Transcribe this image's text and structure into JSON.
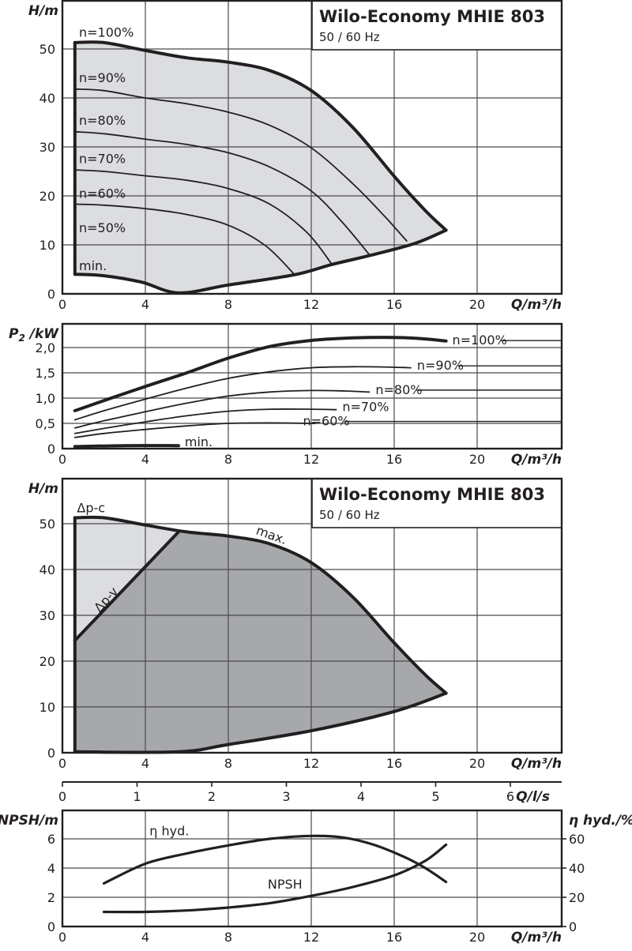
{
  "colors": {
    "ink": "#231f20",
    "light_fill": "#dcdde0",
    "dark_fill": "#a7a8ac",
    "grid": "#4a4a4a",
    "background": "#ffffff"
  },
  "header": {
    "title": "Wilo-Economy MHIE 803",
    "subtitle": "50 / 60 Hz"
  },
  "chart_data": [
    {
      "id": "head_speed_curves",
      "type": "line",
      "title": "Wilo-Economy MHIE 803",
      "subtitle": "50 / 60 Hz",
      "xlabel": "Q/m³/h",
      "ylabel": "H/m",
      "xlim": [
        0,
        24
      ],
      "ylim": [
        0,
        60
      ],
      "xticks": [
        0,
        4,
        8,
        12,
        16,
        20
      ],
      "yticks": [
        0,
        10,
        20,
        30,
        40,
        50
      ],
      "grid": true,
      "envelope": {
        "fill": "#dcdde0",
        "points": [
          [
            0.6,
            4
          ],
          [
            0.6,
            51.3
          ],
          [
            2,
            51.3
          ],
          [
            4,
            49.7
          ],
          [
            6,
            48.2
          ],
          [
            8,
            47.3
          ],
          [
            10,
            45.6
          ],
          [
            12,
            41.5
          ],
          [
            14,
            34
          ],
          [
            16,
            24
          ],
          [
            17.5,
            17
          ],
          [
            18.5,
            13
          ],
          [
            17,
            10.3
          ],
          [
            14.8,
            7.8
          ],
          [
            13,
            6
          ],
          [
            11.2,
            3.9
          ],
          [
            8,
            1.8
          ],
          [
            5.6,
            0.2
          ],
          [
            3.8,
            2.4
          ],
          [
            2,
            3.7
          ],
          [
            0.6,
            4
          ]
        ]
      },
      "series": [
        {
          "name": "n=100%",
          "label": "n=100%",
          "style": "thick",
          "points": [
            [
              0.6,
              51.3
            ],
            [
              2,
              51.3
            ],
            [
              4,
              49.7
            ],
            [
              6,
              48.2
            ],
            [
              8,
              47.3
            ],
            [
              10,
              45.6
            ],
            [
              12,
              41.5
            ],
            [
              14,
              34
            ],
            [
              16,
              24
            ],
            [
              17.5,
              17
            ],
            [
              18.5,
              13
            ]
          ],
          "label_at": [
            0.8,
            52.5
          ]
        },
        {
          "name": "n=90%",
          "label": "n=90%",
          "style": "thin",
          "points": [
            [
              0.6,
              41.8
            ],
            [
              2,
              41.5
            ],
            [
              4,
              40
            ],
            [
              6,
              38.8
            ],
            [
              8,
              37.1
            ],
            [
              10,
              34.4
            ],
            [
              12,
              29.8
            ],
            [
              14,
              22.5
            ],
            [
              15.5,
              16
            ],
            [
              16.6,
              10.8
            ]
          ],
          "label_at": [
            0.8,
            43.2
          ]
        },
        {
          "name": "n=80%",
          "label": "n=80%",
          "style": "thin",
          "points": [
            [
              0.6,
              33.1
            ],
            [
              2,
              32.7
            ],
            [
              4,
              31.6
            ],
            [
              6,
              30.5
            ],
            [
              8,
              28.8
            ],
            [
              10,
              25.9
            ],
            [
              12,
              21
            ],
            [
              13.5,
              14.6
            ],
            [
              14.8,
              8
            ]
          ],
          "label_at": [
            0.8,
            34.5
          ]
        },
        {
          "name": "n=70%",
          "label": "n=70%",
          "style": "thin",
          "points": [
            [
              0.6,
              25.3
            ],
            [
              2,
              25
            ],
            [
              4,
              24.1
            ],
            [
              6,
              23.2
            ],
            [
              8,
              21.5
            ],
            [
              10,
              18.3
            ],
            [
              11.8,
              12.5
            ],
            [
              13,
              6
            ]
          ],
          "label_at": [
            0.8,
            26.7
          ]
        },
        {
          "name": "n=60%",
          "label": "n=60%",
          "style": "thin",
          "points": [
            [
              0.6,
              18.3
            ],
            [
              2,
              18.1
            ],
            [
              4,
              17.4
            ],
            [
              6,
              16.2
            ],
            [
              8,
              14
            ],
            [
              9.8,
              9.8
            ],
            [
              11.2,
              3.9
            ]
          ],
          "label_at": [
            0.8,
            19.6
          ]
        },
        {
          "name": "n=50%",
          "label": "n=50%",
          "style": "none",
          "points": [],
          "label_at": [
            0.8,
            12.6
          ]
        },
        {
          "name": "min.",
          "label": "min.",
          "style": "thick",
          "points": [
            [
              0.6,
              4
            ],
            [
              2,
              3.7
            ],
            [
              3.8,
              2.4
            ],
            [
              5.6,
              0.2
            ],
            [
              8,
              1.8
            ],
            [
              11.2,
              3.9
            ],
            [
              13,
              6
            ],
            [
              14.8,
              7.8
            ],
            [
              17,
              10.3
            ],
            [
              18.5,
              13
            ]
          ],
          "label_at": [
            0.8,
            4.8
          ]
        }
      ],
      "left_boundary": {
        "style": "thick",
        "points": [
          [
            0.6,
            4
          ],
          [
            0.6,
            51.3
          ]
        ]
      }
    },
    {
      "id": "power_curves",
      "type": "line",
      "xlabel": "Q/m³/h",
      "ylabel": "P2 /kW",
      "xlim": [
        0,
        24
      ],
      "ylim": [
        0,
        2.5
      ],
      "xticks": [
        0,
        4,
        8,
        12,
        16,
        20
      ],
      "yticks": [
        0,
        0.5,
        1.0,
        1.5,
        2.0
      ],
      "ytick_labels": [
        "0",
        "0,5",
        "1,0",
        "1,5",
        "2,0"
      ],
      "grid": true,
      "series": [
        {
          "name": "n=100%",
          "label": "n=100%",
          "style": "thick",
          "points": [
            [
              0.6,
              0.75
            ],
            [
              2,
              0.95
            ],
            [
              4,
              1.23
            ],
            [
              6,
              1.5
            ],
            [
              8,
              1.79
            ],
            [
              10,
              2.02
            ],
            [
              12,
              2.14
            ],
            [
              14,
              2.19
            ],
            [
              16,
              2.2
            ],
            [
              17.5,
              2.17
            ],
            [
              18.5,
              2.13
            ]
          ],
          "label_at": [
            18.8,
            2.06
          ],
          "leader_to": 24.1
        },
        {
          "name": "n=90%",
          "label": "n=90%",
          "style": "thin",
          "points": [
            [
              0.6,
              0.57
            ],
            [
              2,
              0.75
            ],
            [
              4,
              0.98
            ],
            [
              6,
              1.2
            ],
            [
              8,
              1.39
            ],
            [
              10,
              1.52
            ],
            [
              12,
              1.6
            ],
            [
              14,
              1.62
            ],
            [
              16,
              1.61
            ],
            [
              16.8,
              1.6
            ]
          ],
          "label_at": [
            17.1,
            1.56
          ],
          "leader_to": 24.1
        },
        {
          "name": "n=80%",
          "label": "n=80%",
          "style": "thin",
          "points": [
            [
              0.6,
              0.41
            ],
            [
              2,
              0.55
            ],
            [
              4,
              0.73
            ],
            [
              6,
              0.9
            ],
            [
              8,
              1.04
            ],
            [
              10,
              1.12
            ],
            [
              12,
              1.15
            ],
            [
              13.6,
              1.14
            ],
            [
              14.8,
              1.12
            ]
          ],
          "label_at": [
            15.1,
            1.08
          ],
          "leader_to": 24.1
        },
        {
          "name": "n=70%",
          "label": "n=70%",
          "style": "thin",
          "points": [
            [
              0.6,
              0.3
            ],
            [
              2,
              0.4
            ],
            [
              4,
              0.53
            ],
            [
              6,
              0.65
            ],
            [
              8,
              0.74
            ],
            [
              10,
              0.78
            ],
            [
              12,
              0.78
            ],
            [
              13.2,
              0.77
            ]
          ],
          "label_at": [
            13.5,
            0.74
          ],
          "leader_to": null
        },
        {
          "name": "n=60%",
          "label": "n=60%",
          "style": "thin",
          "points": [
            [
              0.6,
              0.22
            ],
            [
              2,
              0.3
            ],
            [
              4,
              0.38
            ],
            [
              6,
              0.45
            ],
            [
              8,
              0.5
            ],
            [
              10,
              0.51
            ],
            [
              12,
              0.5
            ],
            [
              12.1,
              0.5
            ]
          ],
          "label_at": [
            11.6,
            0.46
          ],
          "leader_to": 24.1
        },
        {
          "name": "min.",
          "label": "min.",
          "style": "thick",
          "points": [
            [
              0.6,
              0.04
            ],
            [
              3,
              0.06
            ],
            [
              5.6,
              0.06
            ]
          ],
          "label_at": [
            5.9,
            0.05
          ],
          "leader_to": null
        }
      ]
    },
    {
      "id": "control_modes",
      "type": "area",
      "title": "Wilo-Economy MHIE 803",
      "subtitle": "50 / 60 Hz",
      "xlabel": "Q/m³/h",
      "ylabel": "H/m",
      "xlim": [
        0,
        24
      ],
      "ylim": [
        0,
        60
      ],
      "xticks": [
        0,
        4,
        8,
        12,
        16,
        20
      ],
      "yticks": [
        0,
        10,
        20,
        30,
        40,
        50
      ],
      "grid": true,
      "secondary_x_axis": {
        "label": "Q/l/s",
        "ticks": [
          0,
          1,
          2,
          3,
          4,
          5,
          6
        ],
        "factor_m3h_per_unit": 3.6
      },
      "regions": [
        {
          "name": "Δp-c",
          "fill": "#dcdde0",
          "points": [
            [
              0.6,
              24.5
            ],
            [
              0.6,
              51.3
            ],
            [
              2,
              51.3
            ],
            [
              4,
              49.7
            ],
            [
              5.6,
              48.2
            ],
            [
              0.6,
              24.5
            ]
          ]
        },
        {
          "name": "Δp-v",
          "fill": "#a7a8ac",
          "points": [
            [
              0.6,
              0
            ],
            [
              0.6,
              24.5
            ],
            [
              5.6,
              48.2
            ],
            [
              8,
              47.3
            ],
            [
              10,
              45.6
            ],
            [
              12,
              41.5
            ],
            [
              14,
              34
            ],
            [
              16,
              24
            ],
            [
              17.5,
              17
            ],
            [
              18.5,
              13
            ],
            [
              16,
              9
            ],
            [
              12,
              4.8
            ],
            [
              8,
              1.8
            ],
            [
              5.6,
              0.2
            ],
            [
              0.6,
              0
            ]
          ]
        }
      ],
      "series": [
        {
          "name": "max.",
          "label": "max.",
          "style": "thick",
          "points": [
            [
              0.6,
              51.3
            ],
            [
              2,
              51.3
            ],
            [
              4,
              49.7
            ],
            [
              6,
              48.2
            ],
            [
              8,
              47.3
            ],
            [
              10,
              45.6
            ],
            [
              12,
              41.5
            ],
            [
              14,
              34
            ],
            [
              16,
              24
            ],
            [
              17.5,
              17
            ],
            [
              18.5,
              13
            ]
          ],
          "label_at": [
            9.3,
            47.8
          ],
          "label_rotate": 20
        },
        {
          "name": "Δp-v line",
          "label": "Δp-v",
          "style": "thick",
          "points": [
            [
              0.6,
              24.5
            ],
            [
              5.6,
              48.2
            ]
          ],
          "label_at": [
            1.8,
            30.5
          ],
          "label_rotate": -48
        },
        {
          "name": "min.",
          "label": "",
          "style": "thick",
          "points": [
            [
              0.6,
              0.2
            ],
            [
              5.6,
              0.2
            ],
            [
              8,
              1.8
            ],
            [
              12,
              4.8
            ],
            [
              16,
              9
            ],
            [
              18.5,
              13
            ]
          ]
        },
        {
          "name": "Δp-c",
          "label": "Δp-c",
          "style": "none",
          "points": [],
          "label_at": [
            0.7,
            52.5
          ]
        }
      ],
      "left_boundary": {
        "style": "thick",
        "points": [
          [
            0.6,
            0.2
          ],
          [
            0.6,
            51.3
          ]
        ]
      }
    },
    {
      "id": "npsh_efficiency",
      "type": "line",
      "xlabel": "Q/m³/h",
      "ylabel": "NPSH/m",
      "ylabel_right": "η hyd./%",
      "xlim": [
        0,
        24
      ],
      "ylim": [
        0,
        8
      ],
      "ylim_right": [
        0,
        80
      ],
      "xticks": [
        0,
        4,
        8,
        12,
        16,
        20
      ],
      "yticks": [
        0,
        2,
        4,
        6
      ],
      "yticks_right": [
        0,
        20,
        40,
        60
      ],
      "grid": true,
      "series": [
        {
          "name": "η hyd.",
          "label": "η hyd.",
          "axis": "right",
          "style": "medium",
          "points": [
            [
              2,
              29.5
            ],
            [
              4,
              43
            ],
            [
              6,
              50
            ],
            [
              8,
              55.5
            ],
            [
              10,
              60
            ],
            [
              12,
              62
            ],
            [
              13.5,
              61
            ],
            [
              15,
              56
            ],
            [
              16.5,
              47.5
            ],
            [
              17.5,
              40
            ],
            [
              18.5,
              30.5
            ]
          ],
          "label_at": [
            4.2,
            62.3
          ]
        },
        {
          "name": "NPSH",
          "label": "NPSH",
          "axis": "left",
          "style": "medium",
          "points": [
            [
              2,
              1
            ],
            [
              4,
              1
            ],
            [
              6,
              1.1
            ],
            [
              8,
              1.3
            ],
            [
              10,
              1.6
            ],
            [
              12,
              2.1
            ],
            [
              14,
              2.7
            ],
            [
              16,
              3.5
            ],
            [
              17.5,
              4.5
            ],
            [
              18.5,
              5.6
            ]
          ],
          "label_at": [
            9.9,
            2.6
          ]
        }
      ]
    }
  ]
}
